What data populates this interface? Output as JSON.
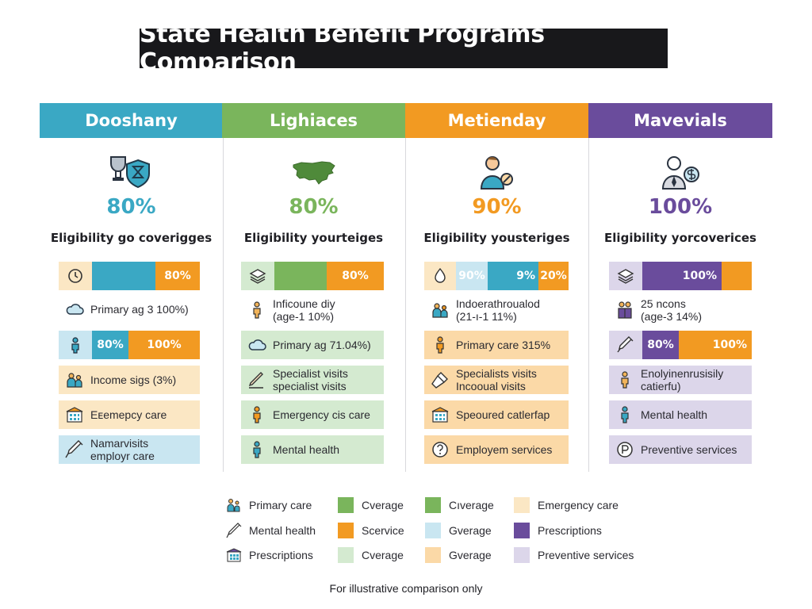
{
  "title": "State Health Benefit Programs Comparison",
  "colors": {
    "teal": "#3aa8c4",
    "green": "#7ab55c",
    "orange": "#f29a22",
    "purple": "#6a4c9c"
  },
  "columns": [
    {
      "name": "Dooshany",
      "icon": "trophy-hourglass-shield-icon",
      "percent": "80%",
      "subtitle": "Eligibility go coverigges",
      "bar1": {
        "icon": "settings-doc-icon",
        "value_label": "80%"
      },
      "row1": {
        "icon": "cloud-icon",
        "line1": "Primary ag 3 100%)",
        "line2": ""
      },
      "bar2": {
        "icon": "person-icon",
        "label_a": "80%",
        "label_b": "100%"
      },
      "row2": {
        "icon": "family-icon",
        "line1": "Income sigs (3%)",
        "line2": ""
      },
      "row3": {
        "icon": "building-icon",
        "line1": "Eᴇemepcy care",
        "line2": ""
      },
      "row4": {
        "icon": "syringe-icon",
        "line1": "Namarvisits",
        "line2": "employr care"
      }
    },
    {
      "name": "Lighiaces",
      "icon": "usa-map-icon",
      "percent": "80%",
      "subtitle": "Eligibility yourteiges",
      "bar1": {
        "icon": "layers-icon",
        "value_label": "80%"
      },
      "row1": {
        "icon": "person-icon",
        "line1": "Inficoune diy",
        "line2": "(age-1 10%)"
      },
      "row2": {
        "icon": "cloud-icon",
        "line1": "Primary ag 71.04%)",
        "line2": ""
      },
      "row3": {
        "icon": "pencil-icon",
        "line1": "Specialist visits",
        "line2": "specialist visits"
      },
      "row4": {
        "icon": "person-icon",
        "line1": "Emergency cis care",
        "line2": ""
      },
      "row5": {
        "icon": "person-icon",
        "line1": "Mental health",
        "line2": ""
      }
    },
    {
      "name": "Metienday",
      "icon": "person-pill-icon",
      "percent": "90%",
      "subtitle": "Eligibility yousteriges",
      "bar1": {
        "icon": "droplet-icon",
        "label_a": "90%",
        "label_b": "9%",
        "label_c": "20%"
      },
      "row1": {
        "icon": "family-icon",
        "line1": "Indoerathroualod",
        "line2": "(21-ı-1 11%)"
      },
      "row2": {
        "icon": "person-icon",
        "line1": "Primary care 315%",
        "line2": ""
      },
      "row3": {
        "icon": "tool-icon",
        "line1": "Specialists visits",
        "line2": "Incooual visits"
      },
      "row4": {
        "icon": "building-icon",
        "line1": "Speoured catlerfap",
        "line2": ""
      },
      "row5": {
        "icon": "question-icon",
        "line1": "Employem services",
        "line2": ""
      }
    },
    {
      "name": "Mavevials",
      "icon": "businessman-dollar-icon",
      "percent": "100%",
      "subtitle": "Eligibility yorcoverices",
      "bar1": {
        "icon": "layers-icon",
        "value_label": "100%"
      },
      "row1": {
        "icon": "couple-icon",
        "line1": "25 ncons",
        "line2": "(age-3 14%)"
      },
      "bar2": {
        "icon": "syringe-icon",
        "label_a": "80%",
        "label_b": "100%"
      },
      "row2": {
        "icon": "person-icon",
        "line1": "Enolyinenrusisily",
        "line2": "catierfu)"
      },
      "row3": {
        "icon": "person-icon",
        "line1": "Mental health",
        "line2": ""
      },
      "row4": {
        "icon": "prescription-icon",
        "line1": "Preventive services",
        "line2": ""
      }
    }
  ],
  "legend": [
    {
      "icon": "family-icon",
      "label": "Primary care"
    },
    {
      "icon": "syringe-icon",
      "label": "Mental health"
    },
    {
      "icon": "building-icon",
      "label": "Prescriptions"
    },
    {
      "swatch": "#7ab55c",
      "label": "Cverage"
    },
    {
      "swatch": "#f29a22",
      "label": "Scervice"
    },
    {
      "swatch": "#d4ead0",
      "label": "Cverage"
    },
    {
      "swatch": "#7ab55c",
      "label": "Cıverage"
    },
    {
      "swatch": "#c9e6f1",
      "label": "Gverage"
    },
    {
      "swatch": "#fbd9a7",
      "label": "Gverage"
    },
    {
      "swatch": "#fbe7c4",
      "label": "Emergency care"
    },
    {
      "swatch": "#6a4c9c",
      "label": "Prescriptions"
    },
    {
      "swatch": "#dcd6ea",
      "label": "Preventive services"
    }
  ],
  "footnote": "For illustrative comparison only"
}
